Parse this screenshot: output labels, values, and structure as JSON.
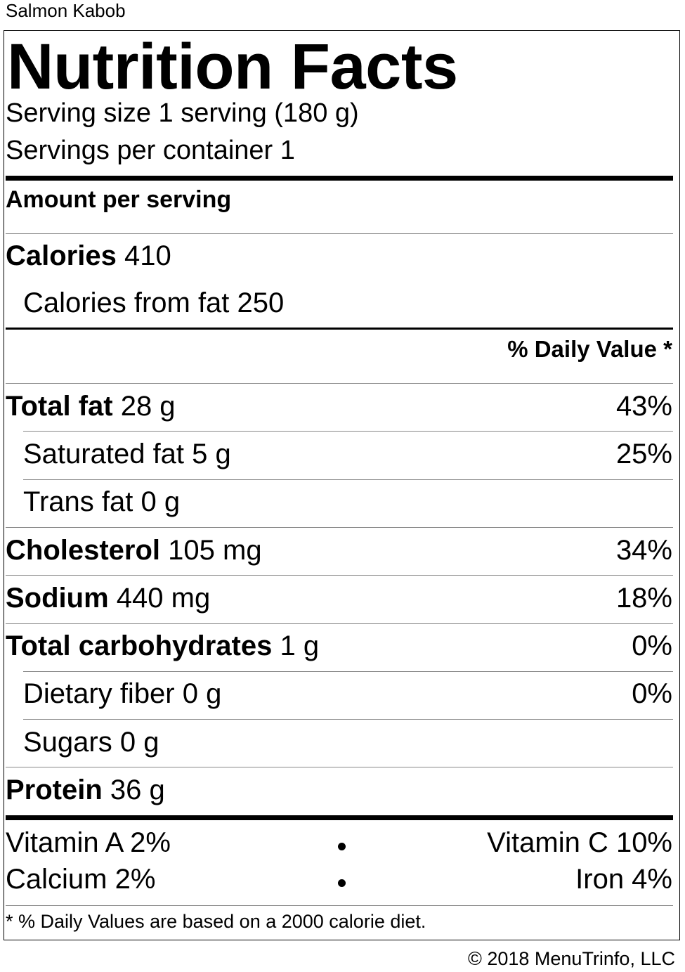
{
  "caption": "Salmon Kabob",
  "label": {
    "title": "Nutrition Facts",
    "serving_size": "Serving size 1 serving (180 g)",
    "servings_per_container": "Servings per container 1",
    "amount_per_serving": "Amount per serving",
    "calories_label": "Calories",
    "calories_value": "410",
    "calories_from_fat": "Calories from fat 250",
    "daily_value_header": "% Daily Value *",
    "nutrients": [
      {
        "name": "Total fat",
        "amount": "28 g",
        "dv": "43%"
      },
      {
        "name": "Saturated fat",
        "amount": "5 g",
        "dv": "25%"
      },
      {
        "name": "Trans fat",
        "amount": "0 g",
        "dv": ""
      },
      {
        "name": "Cholesterol",
        "amount": "105 mg",
        "dv": "34%"
      },
      {
        "name": "Sodium",
        "amount": "440 mg",
        "dv": "18%"
      },
      {
        "name": "Total carbohydrates",
        "amount": "1 g",
        "dv": "0%"
      },
      {
        "name": "Dietary fiber",
        "amount": "0 g",
        "dv": "0%"
      },
      {
        "name": "Sugars",
        "amount": "0 g",
        "dv": ""
      },
      {
        "name": "Protein",
        "amount": "36 g",
        "dv": ""
      }
    ],
    "vitamins": [
      {
        "left": "Vitamin A 2%",
        "right": "Vitamin C 10%"
      },
      {
        "left": "Calcium 2%",
        "right": "Iron 4%"
      }
    ],
    "footnote": "* % Daily Values are based on a 2000 calorie diet."
  },
  "copyright": "© 2018 MenuTrinfo, LLC"
}
